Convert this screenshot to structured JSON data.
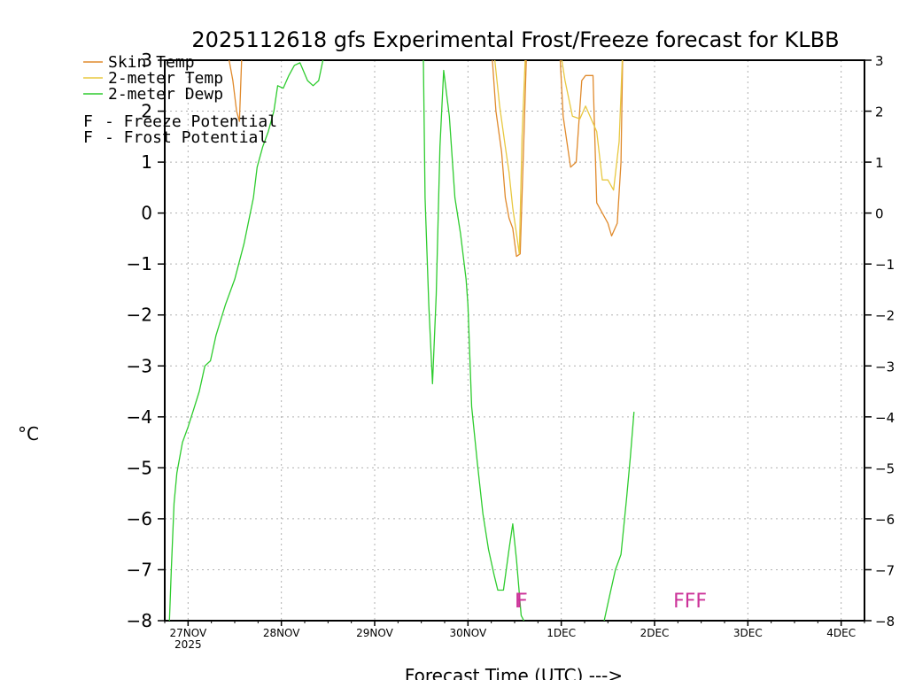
{
  "chart_data": {
    "type": "line",
    "title": "2025112618 gfs Experimental Frost/Freeze forecast for KLBB",
    "xlabel": "Forecast Time (UTC) --->",
    "ylabel": "°C",
    "ylim": [
      -8,
      3
    ],
    "y_ticks": [
      3,
      2,
      1,
      0,
      -1,
      -2,
      -3,
      -4,
      -5,
      -6,
      -7,
      -8
    ],
    "y_tick_labels": [
      "3",
      "2",
      "1",
      "0",
      "−1",
      "−2",
      "−3",
      "−4",
      "−5",
      "−6",
      "−7",
      "−8"
    ],
    "xlim": [
      -0.25,
      7.25
    ],
    "x_ticks": [
      {
        "x": 0,
        "label": "27NOV"
      },
      {
        "x": 1,
        "label": "28NOV"
      },
      {
        "x": 2,
        "label": "29NOV"
      },
      {
        "x": 3,
        "label": "30NOV"
      },
      {
        "x": 4,
        "label": "1DEC"
      },
      {
        "x": 5,
        "label": "2DEC"
      },
      {
        "x": 6,
        "label": "3DEC"
      },
      {
        "x": 7,
        "label": "4DEC"
      }
    ],
    "x_year_label": "2025",
    "grid": true,
    "legend_position": "top-left",
    "legend": [
      {
        "name": "Skin Temp",
        "color": "#e08a2c"
      },
      {
        "name": "2-meter Temp",
        "color": "#e8c840"
      },
      {
        "name": "2-meter Dewp",
        "color": "#2ecc2e"
      }
    ],
    "potential_legend": [
      {
        "letter": "F",
        "text": "- Freeze Potential",
        "color": "#cc3399"
      },
      {
        "letter": "F",
        "text": "- Frost Potential",
        "color": "#6a6aee"
      }
    ],
    "series": [
      {
        "name": "Skin Temp",
        "color": "#e08a2c",
        "segments": [
          [
            [
              0.41,
              3.3
            ],
            [
              0.48,
              2.6
            ],
            [
              0.52,
              2.0
            ],
            [
              0.55,
              1.8
            ],
            [
              0.58,
              3.3
            ]
          ],
          [
            [
              3.25,
              3.3
            ],
            [
              3.3,
              2.0
            ],
            [
              3.36,
              1.2
            ],
            [
              3.4,
              0.3
            ],
            [
              3.44,
              -0.1
            ],
            [
              3.48,
              -0.3
            ],
            [
              3.52,
              -0.85
            ],
            [
              3.56,
              -0.8
            ],
            [
              3.6,
              1.5
            ],
            [
              3.63,
              3.3
            ]
          ],
          [
            [
              3.98,
              3.3
            ],
            [
              4.02,
              1.9
            ],
            [
              4.1,
              0.9
            ],
            [
              4.16,
              1.0
            ],
            [
              4.22,
              2.6
            ],
            [
              4.26,
              2.7
            ],
            [
              4.34,
              2.7
            ],
            [
              4.38,
              0.2
            ],
            [
              4.44,
              0.0
            ],
            [
              4.5,
              -0.2
            ],
            [
              4.54,
              -0.45
            ],
            [
              4.6,
              -0.2
            ],
            [
              4.64,
              1.0
            ],
            [
              4.66,
              3.3
            ]
          ]
        ]
      },
      {
        "name": "2-meter Temp",
        "color": "#e8c840",
        "segments": [
          [
            [
              3.27,
              3.3
            ],
            [
              3.34,
              2.1
            ],
            [
              3.4,
              1.3
            ],
            [
              3.44,
              0.8
            ],
            [
              3.48,
              0.1
            ],
            [
              3.52,
              -0.4
            ],
            [
              3.55,
              -0.8
            ],
            [
              3.58,
              1.5
            ],
            [
              3.62,
              3.3
            ]
          ],
          [
            [
              3.98,
              3.3
            ],
            [
              4.04,
              2.6
            ],
            [
              4.12,
              1.9
            ],
            [
              4.2,
              1.85
            ],
            [
              4.26,
              2.1
            ],
            [
              4.32,
              1.85
            ],
            [
              4.38,
              1.6
            ],
            [
              4.44,
              0.65
            ],
            [
              4.5,
              0.65
            ],
            [
              4.56,
              0.45
            ],
            [
              4.62,
              1.4
            ],
            [
              4.66,
              3.3
            ]
          ]
        ]
      },
      {
        "name": "2-meter Dewp",
        "color": "#2ecc2e",
        "segments": [
          [
            [
              -0.2,
              -8.0
            ],
            [
              -0.18,
              -7.0
            ],
            [
              -0.15,
              -5.7
            ],
            [
              -0.12,
              -5.1
            ],
            [
              -0.06,
              -4.5
            ],
            [
              0.0,
              -4.2
            ],
            [
              0.06,
              -3.85
            ],
            [
              0.12,
              -3.5
            ],
            [
              0.18,
              -3.0
            ],
            [
              0.24,
              -2.9
            ],
            [
              0.3,
              -2.4
            ],
            [
              0.4,
              -1.8
            ],
            [
              0.5,
              -1.3
            ],
            [
              0.6,
              -0.6
            ],
            [
              0.7,
              0.3
            ],
            [
              0.74,
              0.9
            ],
            [
              0.8,
              1.3
            ],
            [
              0.86,
              1.6
            ],
            [
              0.92,
              2.0
            ],
            [
              0.96,
              2.5
            ],
            [
              1.02,
              2.45
            ],
            [
              1.08,
              2.7
            ],
            [
              1.14,
              2.9
            ],
            [
              1.2,
              2.95
            ],
            [
              1.28,
              2.6
            ],
            [
              1.34,
              2.5
            ],
            [
              1.4,
              2.6
            ],
            [
              1.48,
              3.3
            ]
          ],
          [
            [
              2.52,
              3.3
            ],
            [
              2.54,
              0.3
            ],
            [
              2.58,
              -1.8
            ],
            [
              2.62,
              -3.35
            ],
            [
              2.66,
              -1.6
            ],
            [
              2.7,
              1.3
            ],
            [
              2.74,
              2.8
            ],
            [
              2.8,
              1.9
            ],
            [
              2.86,
              0.3
            ],
            [
              2.92,
              -0.4
            ],
            [
              2.98,
              -1.3
            ],
            [
              3.0,
              -1.8
            ],
            [
              3.04,
              -3.8
            ],
            [
              3.1,
              -4.9
            ],
            [
              3.16,
              -5.9
            ],
            [
              3.22,
              -6.6
            ],
            [
              3.28,
              -7.1
            ],
            [
              3.32,
              -7.4
            ],
            [
              3.38,
              -7.4
            ],
            [
              3.44,
              -6.6
            ],
            [
              3.48,
              -6.1
            ],
            [
              3.52,
              -6.8
            ],
            [
              3.57,
              -7.9
            ],
            [
              3.6,
              -8.0
            ]
          ],
          [
            [
              4.46,
              -8.0
            ],
            [
              4.52,
              -7.5
            ],
            [
              4.58,
              -7.0
            ],
            [
              4.64,
              -6.7
            ],
            [
              4.7,
              -5.6
            ],
            [
              4.74,
              -4.8
            ],
            [
              4.78,
              -3.9
            ]
          ]
        ]
      }
    ],
    "potential_marks": [
      {
        "text": "F",
        "type": "Freeze",
        "x": 3.5,
        "y": -7.6,
        "color": "#cc3399"
      },
      {
        "text": "F",
        "type": "Freeze",
        "x": 3.52,
        "y": -7.6,
        "color": "#cc3399"
      },
      {
        "text": "FFF",
        "type": "Freeze",
        "x": 5.2,
        "y": -7.6,
        "color": "#cc3399"
      }
    ]
  }
}
